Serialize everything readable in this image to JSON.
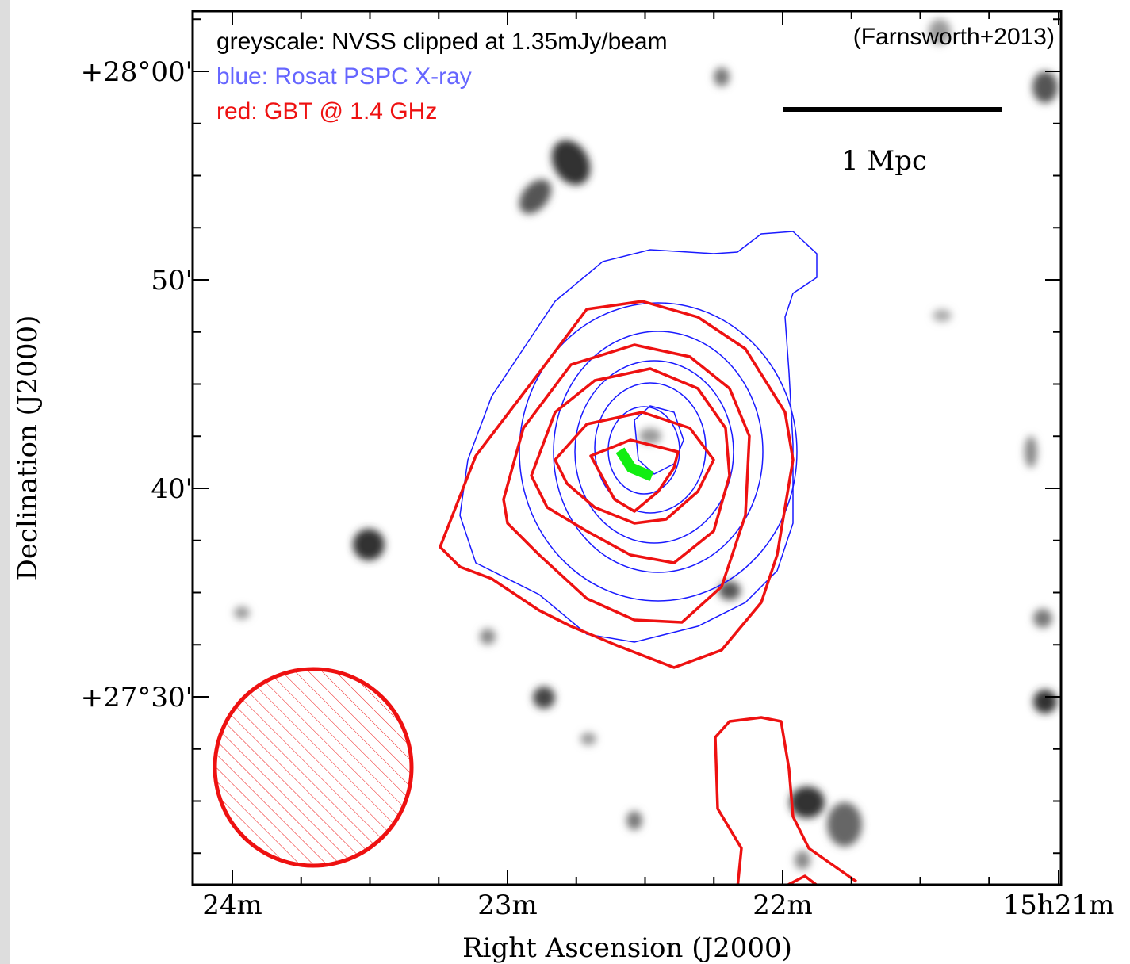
{
  "annotations": {
    "legend": [
      "greyscale: NVSS clipped at 1.35mJy/beam",
      "blue: Rosat PSPC X-ray",
      "red: GBT @ 1.4 GHz"
    ],
    "citation": "(Farnsworth+2013)",
    "scale_bar": "1 Mpc"
  },
  "x_axis": {
    "label": "Right Ascension (J2000)",
    "ticks": [
      "24m",
      "23m",
      "22m",
      "15h21m"
    ]
  },
  "y_axis": {
    "label": "Declination (J2000)",
    "ticks": [
      "+28°00'",
      "50'",
      "40'",
      "+27°30'"
    ]
  }
}
